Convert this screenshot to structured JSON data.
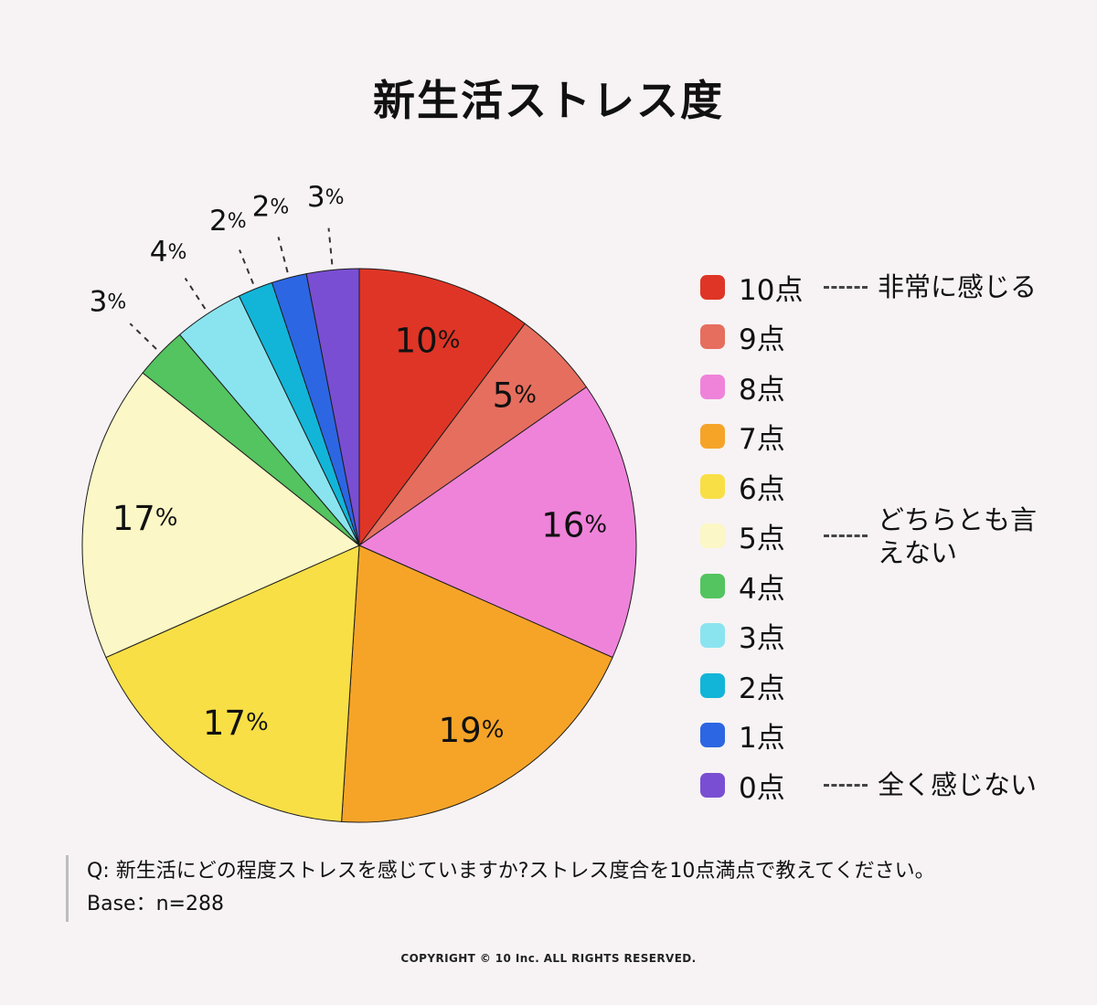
{
  "title": "新生活ストレス度",
  "chart_data": {
    "type": "pie",
    "title": "新生活ストレス度",
    "unit": "%",
    "direction": "clockwise",
    "start_angle_deg": 0,
    "legend_position": "right",
    "slices": [
      {
        "score": 10,
        "label": "10点",
        "value": 10,
        "color": "#df3526",
        "annotation": "非常に感じる"
      },
      {
        "score": 9,
        "label": "9点",
        "value": 5,
        "color": "#e66e5e"
      },
      {
        "score": 8,
        "label": "8点",
        "value": 16,
        "color": "#ef83da"
      },
      {
        "score": 7,
        "label": "7点",
        "value": 19,
        "color": "#f6a428"
      },
      {
        "score": 6,
        "label": "6点",
        "value": 17,
        "color": "#f8df45"
      },
      {
        "score": 5,
        "label": "5点",
        "value": 17,
        "color": "#fbf7c6",
        "annotation": "どちらとも言えない"
      },
      {
        "score": 4,
        "label": "4点",
        "value": 3,
        "color": "#53c45f"
      },
      {
        "score": 3,
        "label": "3点",
        "value": 4,
        "color": "#8ae4ef"
      },
      {
        "score": 2,
        "label": "2点",
        "value": 2,
        "color": "#12b5d8"
      },
      {
        "score": 1,
        "label": "1点",
        "value": 2,
        "color": "#2c66e2"
      },
      {
        "score": 0,
        "label": "0点",
        "value": 3,
        "color": "#7a4ed2",
        "annotation": "全く感じない"
      }
    ]
  },
  "footnote": {
    "question": "Q: 新生活にどの程度ストレスを感じていますか?ストレス度合を10点満点で教えてください。",
    "base": "Base：n=288"
  },
  "copyright": "COPYRIGHT © 10 Inc. ALL RIGHTS RESERVED."
}
